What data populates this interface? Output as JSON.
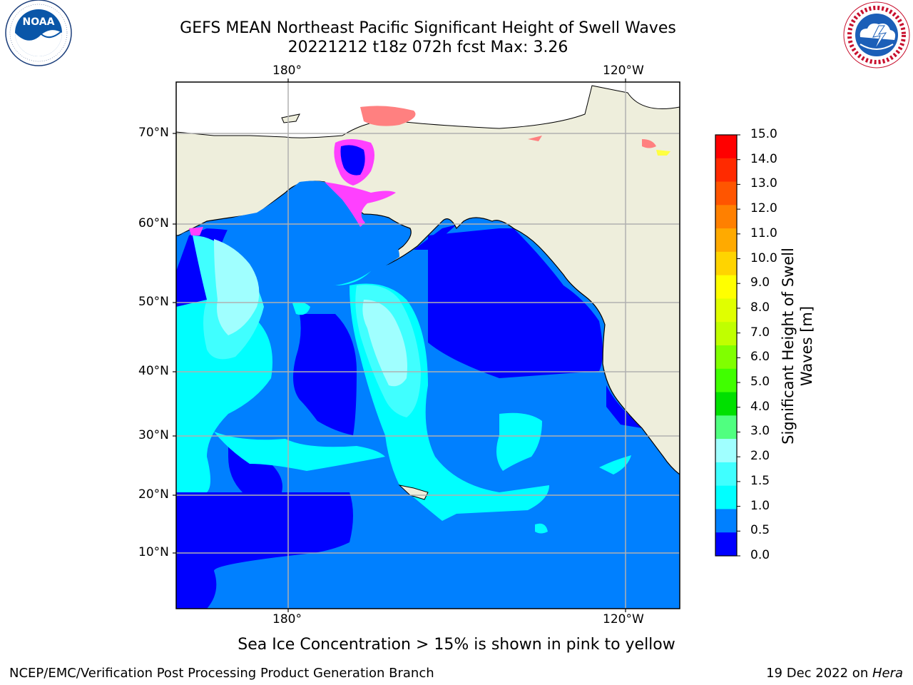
{
  "title": {
    "line1": "GEFS MEAN Northeast Pacific Significant Height of Swell Waves",
    "line2": "20221212 t18z 072h fcst   Max: 3.26"
  },
  "logos": {
    "left": {
      "name": "noaa-logo",
      "text": "NOAA",
      "ring_text": "NATIONAL OCEANIC AND ATMOSPHERIC ADMINISTRATION · U.S. DEPARTMENT OF COMMERCE"
    },
    "right": {
      "name": "nws-logo",
      "ring_text": "NATIONAL WEATHER SERVICE"
    }
  },
  "map": {
    "lon_labels": [
      "180°",
      "120°W"
    ],
    "lat_labels": [
      "70°N",
      "60°N",
      "50°N",
      "40°N",
      "30°N",
      "20°N",
      "10°N"
    ],
    "colors": {
      "land": "#eeeedc",
      "ocean_low": "#0000ff",
      "ocean_mid": "#0080ff",
      "swell_15": "#00ffff",
      "swell_20": "#40ffff",
      "swell_25": "#a0ffff",
      "ice_pink": "#ff40ff",
      "ice_salmon": "#ff8080",
      "grid": "#b0b0b0"
    }
  },
  "colorbar": {
    "label": "Significant Height of Swell Waves [m]",
    "ticks": [
      "15.0",
      "14.0",
      "13.0",
      "12.0",
      "11.0",
      "10.0",
      "9.0",
      "8.0",
      "7.0",
      "6.0",
      "5.0",
      "4.0",
      "3.0",
      "2.0",
      "1.5",
      "1.0",
      "0.5",
      "0.0"
    ],
    "colors": [
      "#ff0000",
      "#ff2a00",
      "#ff5500",
      "#ff8000",
      "#ffaa00",
      "#ffd400",
      "#ffff00",
      "#e0ff00",
      "#c0ff00",
      "#80ff00",
      "#40ff00",
      "#00e000",
      "#50ff80",
      "#a0ffff",
      "#40ffff",
      "#00ffff",
      "#0080ff",
      "#0000ff"
    ]
  },
  "note": "Sea Ice Concentration > 15% is shown in pink to yellow",
  "footer": {
    "left": "NCEP/EMC/Verification Post Processing Product Generation Branch",
    "right_date": "19 Dec 2022 on ",
    "right_host": "Hera"
  }
}
